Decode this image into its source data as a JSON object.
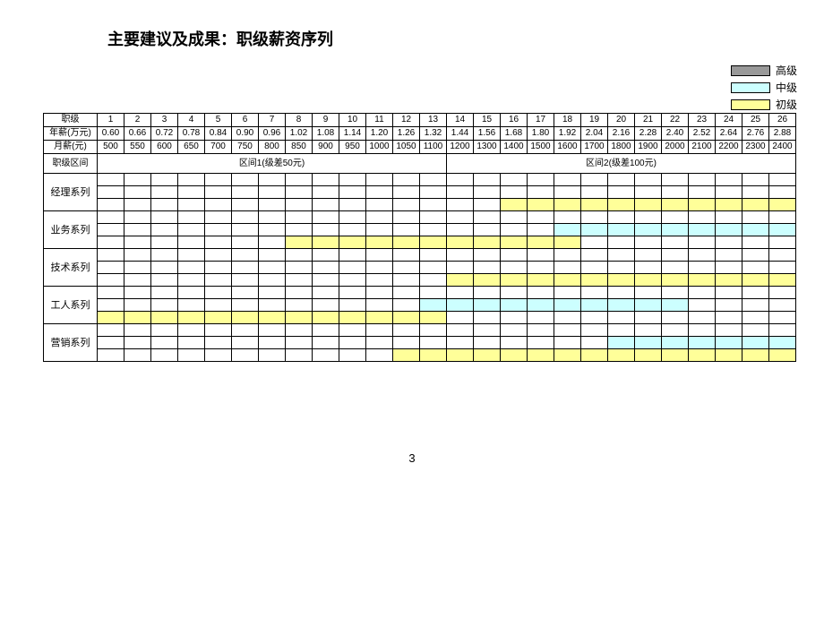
{
  "title": "主要建议及成果：职级薪资序列",
  "page_number": "3",
  "legend": {
    "senior": {
      "label": "高级",
      "color": "#999999"
    },
    "middle": {
      "label": "中级",
      "color": "#ccffff"
    },
    "junior": {
      "label": "初级",
      "color": "#ffff99"
    }
  },
  "colors": {
    "background": "#ffffff",
    "grid": "#000000",
    "bar_senior": "#999999",
    "bar_middle": "#ccffff",
    "bar_junior": "#ffff99"
  },
  "headers": {
    "level_label": "职级",
    "annual_label": "年薪(万元)",
    "monthly_label": "月薪(元)",
    "interval_label": "职级区间",
    "levels": [
      "1",
      "2",
      "3",
      "4",
      "5",
      "6",
      "7",
      "8",
      "9",
      "10",
      "11",
      "12",
      "13",
      "14",
      "15",
      "16",
      "17",
      "18",
      "19",
      "20",
      "21",
      "22",
      "23",
      "24",
      "25",
      "26"
    ],
    "annual": [
      "0.60",
      "0.66",
      "0.72",
      "0.78",
      "0.84",
      "0.90",
      "0.96",
      "1.02",
      "1.08",
      "1.14",
      "1.20",
      "1.26",
      "1.32",
      "1.44",
      "1.56",
      "1.68",
      "1.80",
      "1.92",
      "2.04",
      "2.16",
      "2.28",
      "2.40",
      "2.52",
      "2.64",
      "2.76",
      "2.88"
    ],
    "monthly": [
      "500",
      "550",
      "600",
      "650",
      "700",
      "750",
      "800",
      "850",
      "900",
      "950",
      "1000",
      "1050",
      "1100",
      "1200",
      "1300",
      "1400",
      "1500",
      "1600",
      "1700",
      "1800",
      "1900",
      "2000",
      "2100",
      "2200",
      "2300",
      "2400"
    ]
  },
  "intervals": {
    "split_at": 13,
    "left_label": "区间1(级差50元)",
    "right_label": "区间2(级差100元)"
  },
  "series": [
    {
      "name": "经理系列",
      "bars": [
        {
          "tier": "junior",
          "start": 16,
          "end": 26
        }
      ]
    },
    {
      "name": "业务系列",
      "bars": [
        {
          "tier": "middle",
          "start": 18,
          "end": 26
        },
        {
          "tier": "junior",
          "start": 8,
          "end": 18
        }
      ]
    },
    {
      "name": "技术系列",
      "bars": [
        {
          "tier": "junior",
          "start": 14,
          "end": 26
        }
      ]
    },
    {
      "name": "工人系列",
      "bars": [
        {
          "tier": "middle",
          "start": 13,
          "end": 22
        },
        {
          "tier": "junior",
          "start": 1,
          "end": 13
        }
      ]
    },
    {
      "name": "营销系列",
      "bars": [
        {
          "tier": "middle",
          "start": 20,
          "end": 26
        },
        {
          "tier": "junior",
          "start": 12,
          "end": 26
        }
      ]
    }
  ],
  "fontsize": {
    "title": 18,
    "cell": 10,
    "legend": 12
  }
}
